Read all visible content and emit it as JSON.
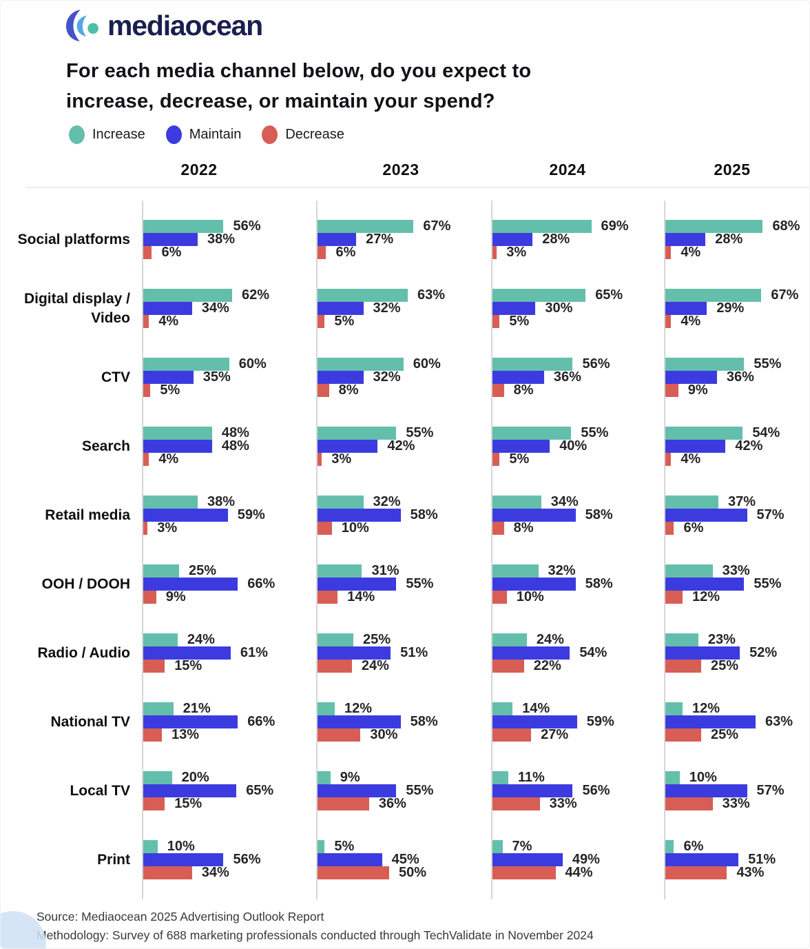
{
  "logo": {
    "text": "mediaocean"
  },
  "title": {
    "lines": [
      "For each media channel below, do you expect to",
      "increase, decrease, or maintain your spend?"
    ]
  },
  "legend": [
    {
      "label": "Increase",
      "color": "#63BFAC"
    },
    {
      "label": "Maintain",
      "color": "#3C3BE0"
    },
    {
      "label": "Decrease",
      "color": "#D85E55"
    }
  ],
  "years": [
    "2022",
    "2023",
    "2024",
    "2025"
  ],
  "footer": {
    "source": "Source: Mediaocean 2025 Advertising Outlook Report",
    "methodology": "Methodology: Survey of 688 marketing professionals conducted through TechValidate in November 2024"
  },
  "chart_data": {
    "type": "bar",
    "orientation": "horizontal",
    "unit": "%",
    "series_names": [
      "Increase",
      "Maintain",
      "Decrease"
    ],
    "colors": {
      "increase": "#63BFAC",
      "maintain": "#3C3BE0",
      "decrease": "#D85E55"
    },
    "years": [
      "2022",
      "2023",
      "2024",
      "2025"
    ],
    "channels": [
      {
        "label": "Social platforms",
        "values": {
          "2022": [
            56,
            38,
            6
          ],
          "2023": [
            67,
            27,
            6
          ],
          "2024": [
            69,
            28,
            3
          ],
          "2025": [
            68,
            28,
            4
          ]
        }
      },
      {
        "label": "Digital display / Video",
        "values": {
          "2022": [
            62,
            34,
            4
          ],
          "2023": [
            63,
            32,
            5
          ],
          "2024": [
            65,
            30,
            5
          ],
          "2025": [
            67,
            29,
            4
          ]
        }
      },
      {
        "label": "CTV",
        "values": {
          "2022": [
            60,
            35,
            5
          ],
          "2023": [
            60,
            32,
            8
          ],
          "2024": [
            56,
            36,
            8
          ],
          "2025": [
            55,
            36,
            9
          ]
        }
      },
      {
        "label": "Search",
        "values": {
          "2022": [
            48,
            48,
            4
          ],
          "2023": [
            55,
            42,
            3
          ],
          "2024": [
            55,
            40,
            5
          ],
          "2025": [
            54,
            42,
            4
          ]
        }
      },
      {
        "label": "Retail media",
        "values": {
          "2022": [
            38,
            59,
            3
          ],
          "2023": [
            32,
            58,
            10
          ],
          "2024": [
            34,
            58,
            8
          ],
          "2025": [
            37,
            57,
            6
          ]
        }
      },
      {
        "label": "OOH / DOOH",
        "values": {
          "2022": [
            25,
            66,
            9
          ],
          "2023": [
            31,
            55,
            14
          ],
          "2024": [
            32,
            58,
            10
          ],
          "2025": [
            33,
            55,
            12
          ]
        }
      },
      {
        "label": "Radio / Audio",
        "values": {
          "2022": [
            24,
            61,
            15
          ],
          "2023": [
            25,
            51,
            24
          ],
          "2024": [
            24,
            54,
            22
          ],
          "2025": [
            23,
            52,
            25
          ]
        }
      },
      {
        "label": "National TV",
        "values": {
          "2022": [
            21,
            66,
            13
          ],
          "2023": [
            12,
            58,
            30
          ],
          "2024": [
            14,
            59,
            27
          ],
          "2025": [
            12,
            63,
            25
          ]
        }
      },
      {
        "label": "Local TV",
        "values": {
          "2022": [
            20,
            65,
            15
          ],
          "2023": [
            9,
            55,
            36
          ],
          "2024": [
            11,
            56,
            33
          ],
          "2025": [
            10,
            57,
            33
          ]
        }
      },
      {
        "label": "Print",
        "values": {
          "2022": [
            10,
            56,
            34
          ],
          "2023": [
            5,
            45,
            50
          ],
          "2024": [
            7,
            49,
            44
          ],
          "2025": [
            6,
            51,
            43
          ]
        }
      }
    ]
  }
}
